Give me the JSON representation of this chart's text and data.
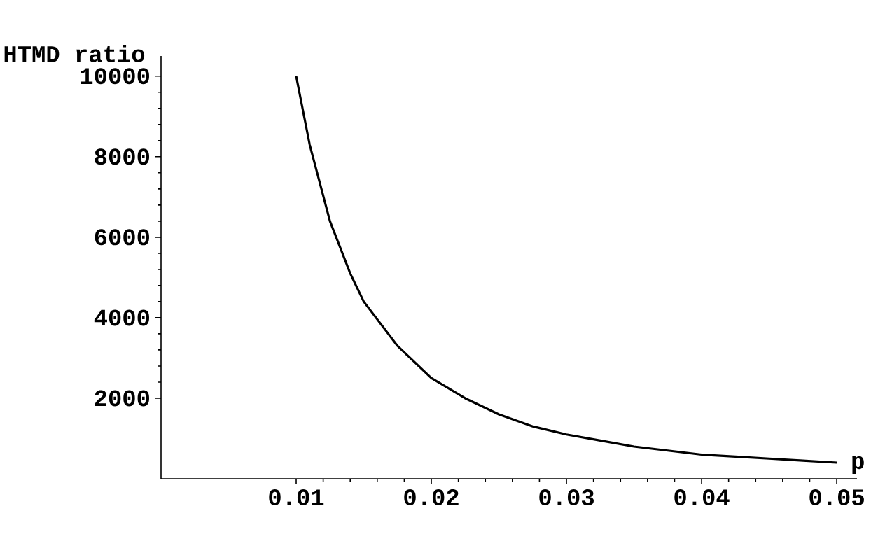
{
  "chart_data": {
    "type": "line",
    "xlabel": "p",
    "ylabel": "HTMD ratio",
    "color": "#000000",
    "x": [
      0.01,
      0.011,
      0.0125,
      0.014,
      0.015,
      0.0175,
      0.02,
      0.0225,
      0.025,
      0.0275,
      0.03,
      0.0325,
      0.035,
      0.0375,
      0.04,
      0.0425,
      0.045,
      0.0475,
      0.05
    ],
    "values": [
      10000,
      8300,
      6400,
      5100,
      4400,
      3300,
      2500,
      2000,
      1600,
      1300,
      1100,
      950,
      800,
      700,
      600,
      550,
      500,
      450,
      400
    ],
    "xlim": [
      0,
      0.0515
    ],
    "ylim": [
      0,
      10500
    ],
    "xticks": [
      0.01,
      0.02,
      0.03,
      0.04,
      0.05
    ],
    "yticks": [
      2000,
      4000,
      6000,
      8000,
      10000
    ],
    "marker": "none",
    "line_style": "solid"
  }
}
